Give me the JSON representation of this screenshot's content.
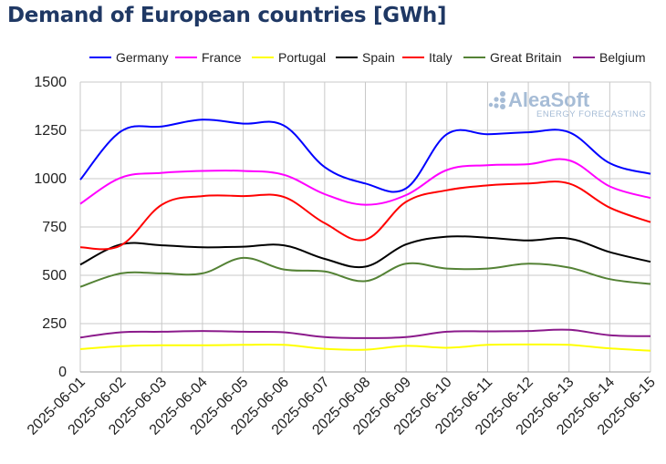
{
  "chart_data": {
    "type": "line",
    "title": "Demand of European countries [GWh]",
    "xlabel": "",
    "ylabel": "",
    "ylim": [
      0,
      1500
    ],
    "yticks": [
      0,
      250,
      500,
      750,
      1000,
      1250,
      1500
    ],
    "y_tick_labels": [
      "0",
      "250",
      "500",
      "750",
      "1000",
      "1250",
      "1500"
    ],
    "grid": true,
    "legend_position": "top",
    "categories": [
      "2025-06-01",
      "2025-06-02",
      "2025-06-03",
      "2025-06-04",
      "2025-06-05",
      "2025-06-06",
      "2025-06-07",
      "2025-06-08",
      "2025-06-09",
      "2025-06-10",
      "2025-06-11",
      "2025-06-12",
      "2025-06-13",
      "2025-06-14",
      "2025-06-15"
    ],
    "series": [
      {
        "name": "Germany",
        "color": "#0000ff",
        "values": [
          995,
          1245,
          1270,
          1305,
          1285,
          1275,
          1060,
          975,
          950,
          1230,
          1230,
          1240,
          1240,
          1080,
          1025
        ]
      },
      {
        "name": "France",
        "color": "#ff00ff",
        "values": [
          870,
          1005,
          1030,
          1040,
          1040,
          1020,
          920,
          865,
          915,
          1045,
          1070,
          1075,
          1095,
          960,
          900
        ]
      },
      {
        "name": "Portugal",
        "color": "#ffff00",
        "values": [
          118,
          133,
          138,
          138,
          140,
          140,
          120,
          115,
          135,
          125,
          140,
          142,
          140,
          122,
          110
        ]
      },
      {
        "name": "Spain",
        "color": "#000000",
        "values": [
          555,
          660,
          655,
          645,
          648,
          655,
          585,
          545,
          660,
          700,
          695,
          680,
          690,
          620,
          570
        ]
      },
      {
        "name": "Italy",
        "color": "#ff0000",
        "values": [
          645,
          655,
          865,
          910,
          910,
          905,
          770,
          685,
          880,
          940,
          965,
          975,
          975,
          850,
          775
        ]
      },
      {
        "name": "Great Britain",
        "color": "#548235",
        "values": [
          440,
          510,
          510,
          510,
          590,
          530,
          520,
          470,
          560,
          535,
          535,
          560,
          540,
          480,
          455
        ]
      },
      {
        "name": "Belgium",
        "color": "#8b1a8b",
        "values": [
          178,
          205,
          208,
          212,
          208,
          205,
          180,
          175,
          180,
          208,
          210,
          212,
          218,
          190,
          185
        ]
      }
    ]
  },
  "watermark": {
    "brand": "AleaSoft",
    "sub": "ENERGY FORECASTING"
  }
}
